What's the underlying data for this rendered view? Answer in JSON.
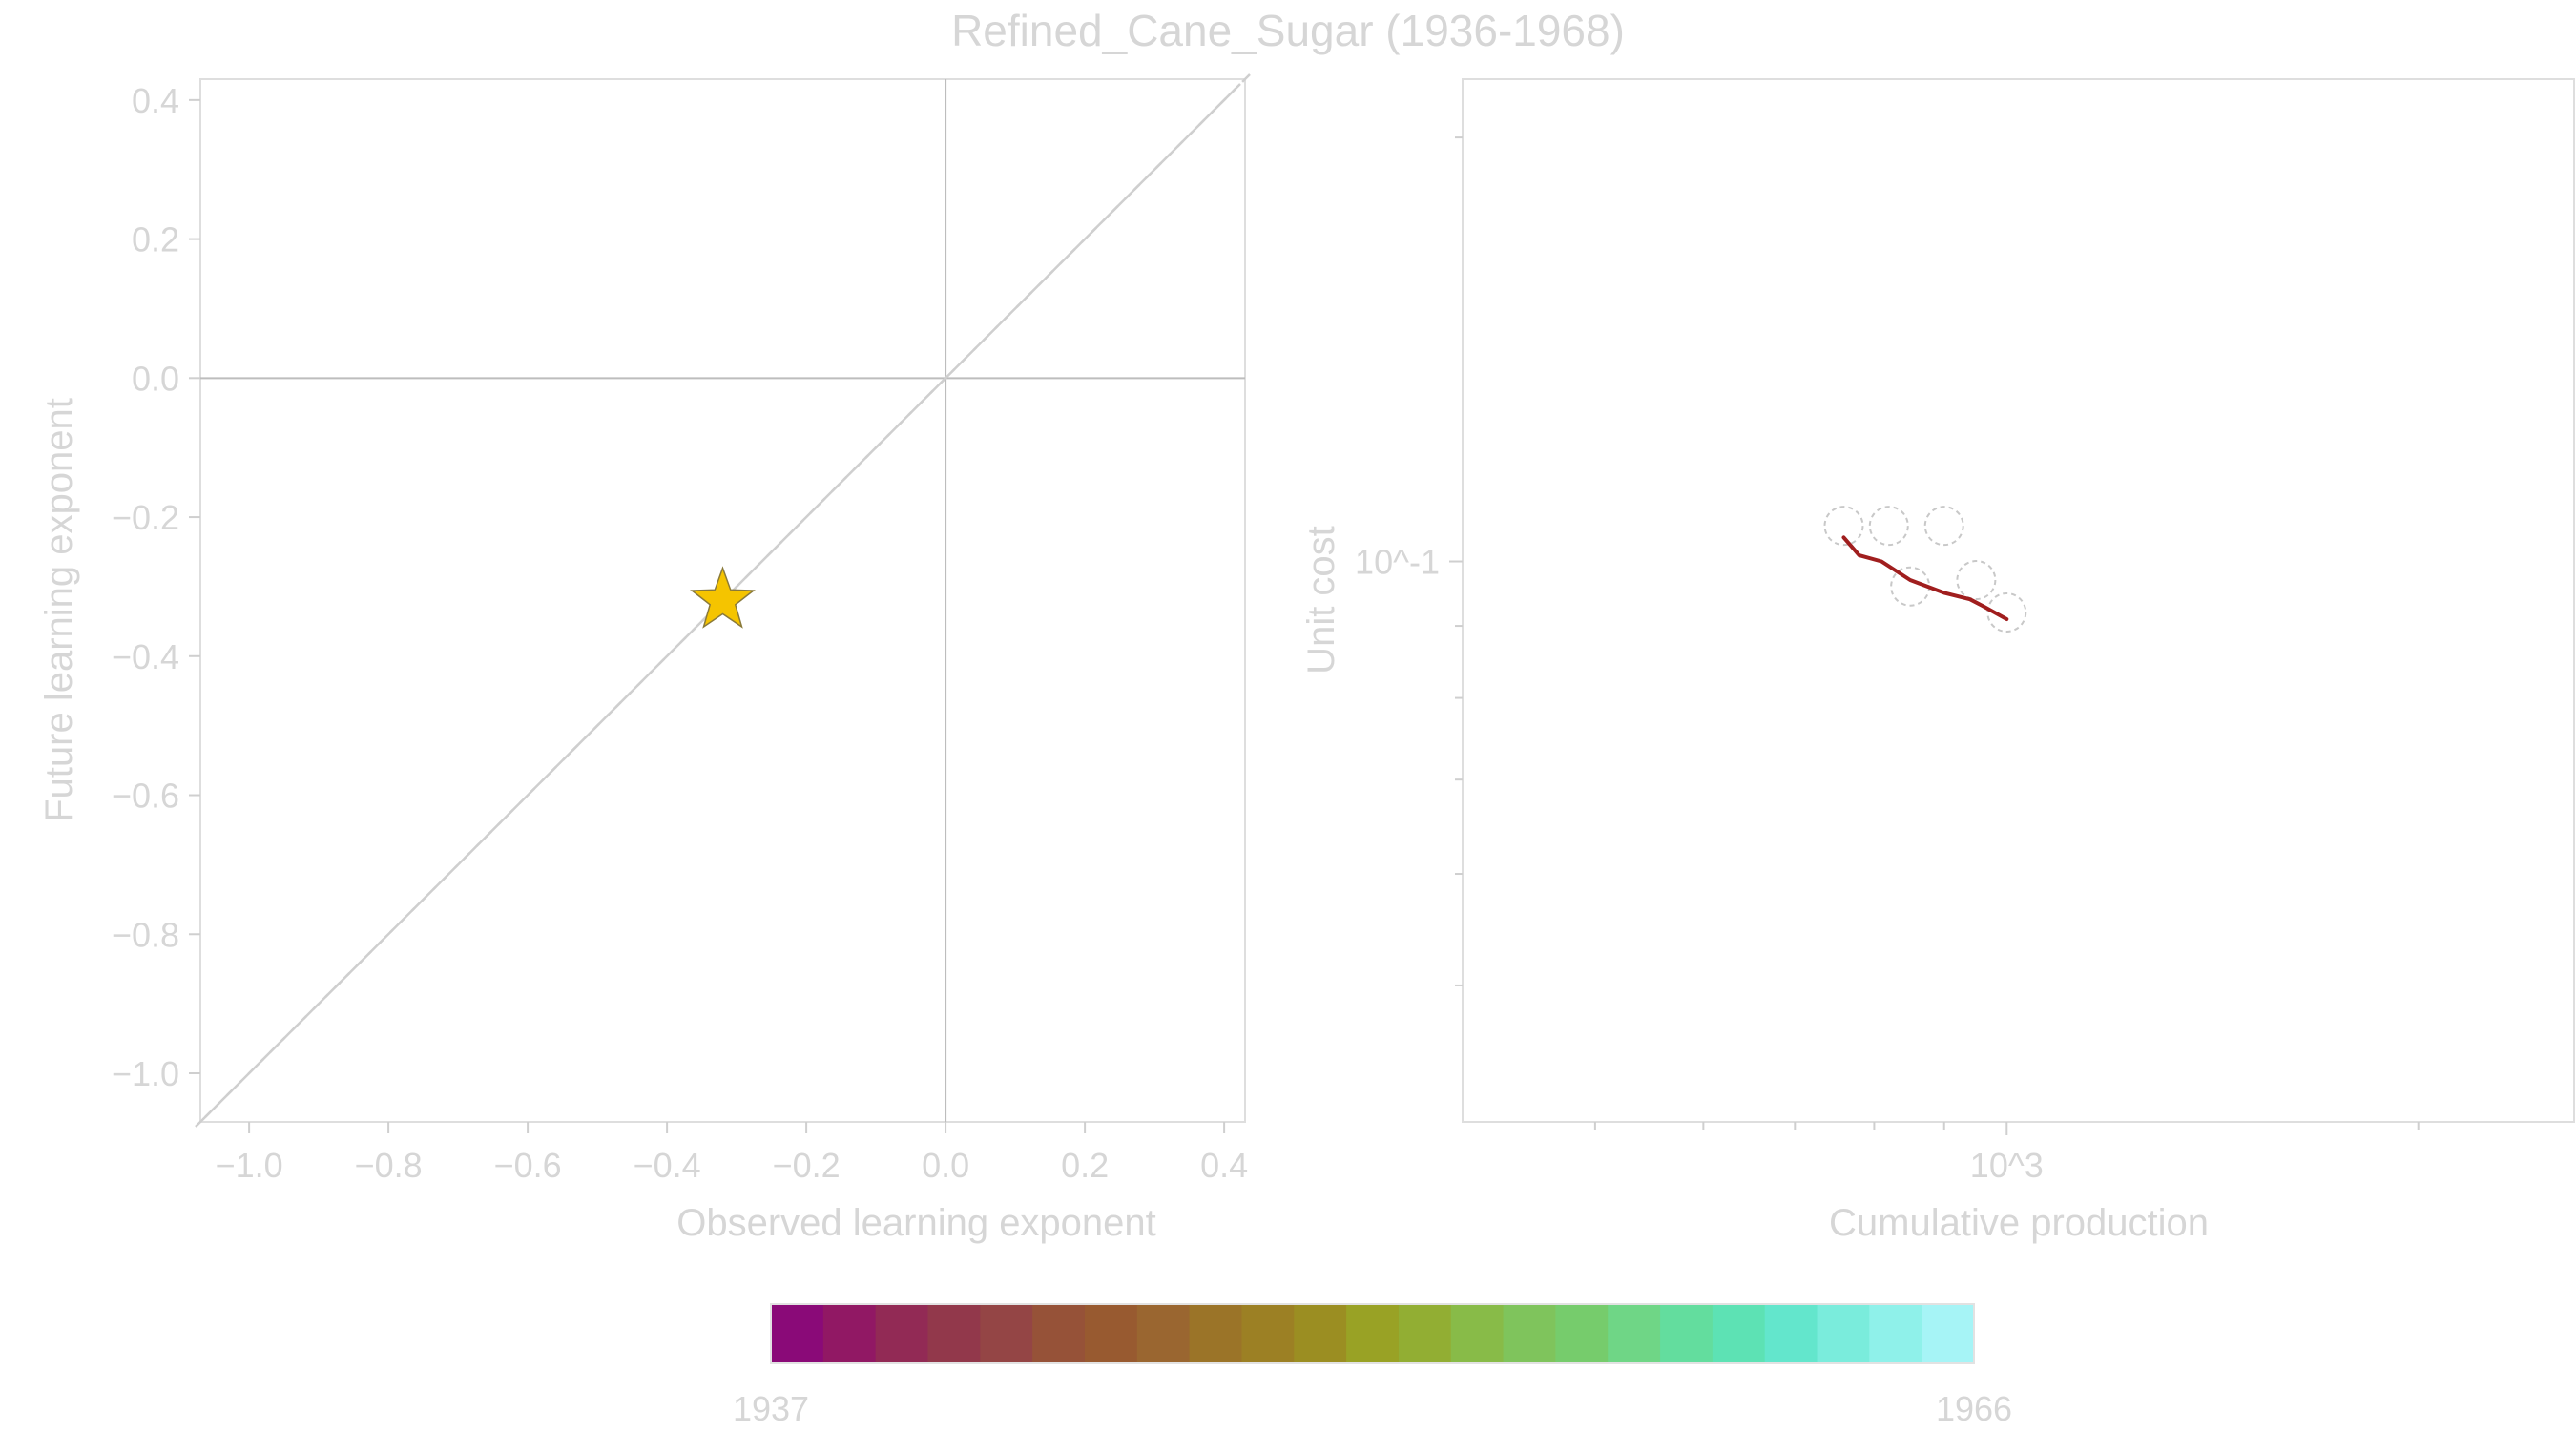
{
  "figure": {
    "title": "Refined_Cane_Sugar (1936-1968)"
  },
  "chart_data": [
    {
      "type": "scatter",
      "panel": "left",
      "xlabel": "Observed learning exponent",
      "ylabel": "Future learning exponent",
      "xlim": [
        -1.07,
        0.43
      ],
      "ylim": [
        -1.07,
        0.43
      ],
      "xticks": [
        -1.0,
        -0.8,
        -0.6,
        -0.4,
        -0.2,
        0.0,
        0.2,
        0.4
      ],
      "yticks": [
        -1.0,
        -0.8,
        -0.6,
        -0.4,
        -0.2,
        0.0,
        0.2,
        0.4
      ],
      "xtick_labels": [
        "−1.0",
        "−0.8",
        "−0.6",
        "−0.4",
        "−0.2",
        "0.0",
        "0.2",
        "0.4"
      ],
      "ytick_labels": [
        "−1.0",
        "−0.8",
        "−0.6",
        "−0.4",
        "−0.2",
        "0.0",
        "0.2",
        "0.4"
      ],
      "reference_lines": [
        {
          "kind": "identity",
          "style": "dashed"
        },
        {
          "kind": "horizontal",
          "y": 0
        },
        {
          "kind": "vertical",
          "x": 0
        }
      ],
      "points": [
        {
          "x": -0.32,
          "y": -0.32,
          "marker": "star",
          "color": "#f5c400"
        }
      ]
    },
    {
      "type": "line",
      "panel": "right",
      "xlabel": "Cumulative production",
      "ylabel": "Unit cost",
      "xscale": "log",
      "yscale": "log",
      "xlim": [
        400,
        2600
      ],
      "ylim": [
        0.04,
        0.22
      ],
      "xtick_major": [
        1000
      ],
      "xtick_major_labels": [
        "10^3"
      ],
      "xtick_minor": [
        500,
        600,
        700,
        800,
        900,
        2000
      ],
      "ytick_major": [
        0.1
      ],
      "ytick_major_labels": [
        "10^-1"
      ],
      "ytick_minor": [
        0.05,
        0.06,
        0.07,
        0.08,
        0.09,
        0.2
      ],
      "series": [
        {
          "x": [
            760,
            780,
            810,
            850,
            900,
            940,
            960,
            1000
          ],
          "y": [
            0.104,
            0.101,
            0.1,
            0.097,
            0.095,
            0.094,
            0.093,
            0.091
          ],
          "color": "#a01e1e"
        }
      ],
      "circles": [
        {
          "x": 760,
          "y": 0.106
        },
        {
          "x": 820,
          "y": 0.106
        },
        {
          "x": 900,
          "y": 0.106
        },
        {
          "x": 950,
          "y": 0.097
        },
        {
          "x": 1000,
          "y": 0.092
        },
        {
          "x": 850,
          "y": 0.096
        }
      ]
    }
  ],
  "colorbar": {
    "min_label": "1937",
    "max_label": "1966",
    "colors": [
      "#8a0a78",
      "#911864",
      "#922a55",
      "#92384b",
      "#944545",
      "#965238",
      "#985a30",
      "#9a6630",
      "#9b7428",
      "#9c8024",
      "#9b8e22",
      "#99a225",
      "#92ae33",
      "#88bb48",
      "#7fc45c",
      "#76cc6c",
      "#6fd686",
      "#63dd9e",
      "#5de2b4",
      "#63e6cc",
      "#7aecdc",
      "#8ff1ea",
      "#a6f4f6"
    ]
  }
}
